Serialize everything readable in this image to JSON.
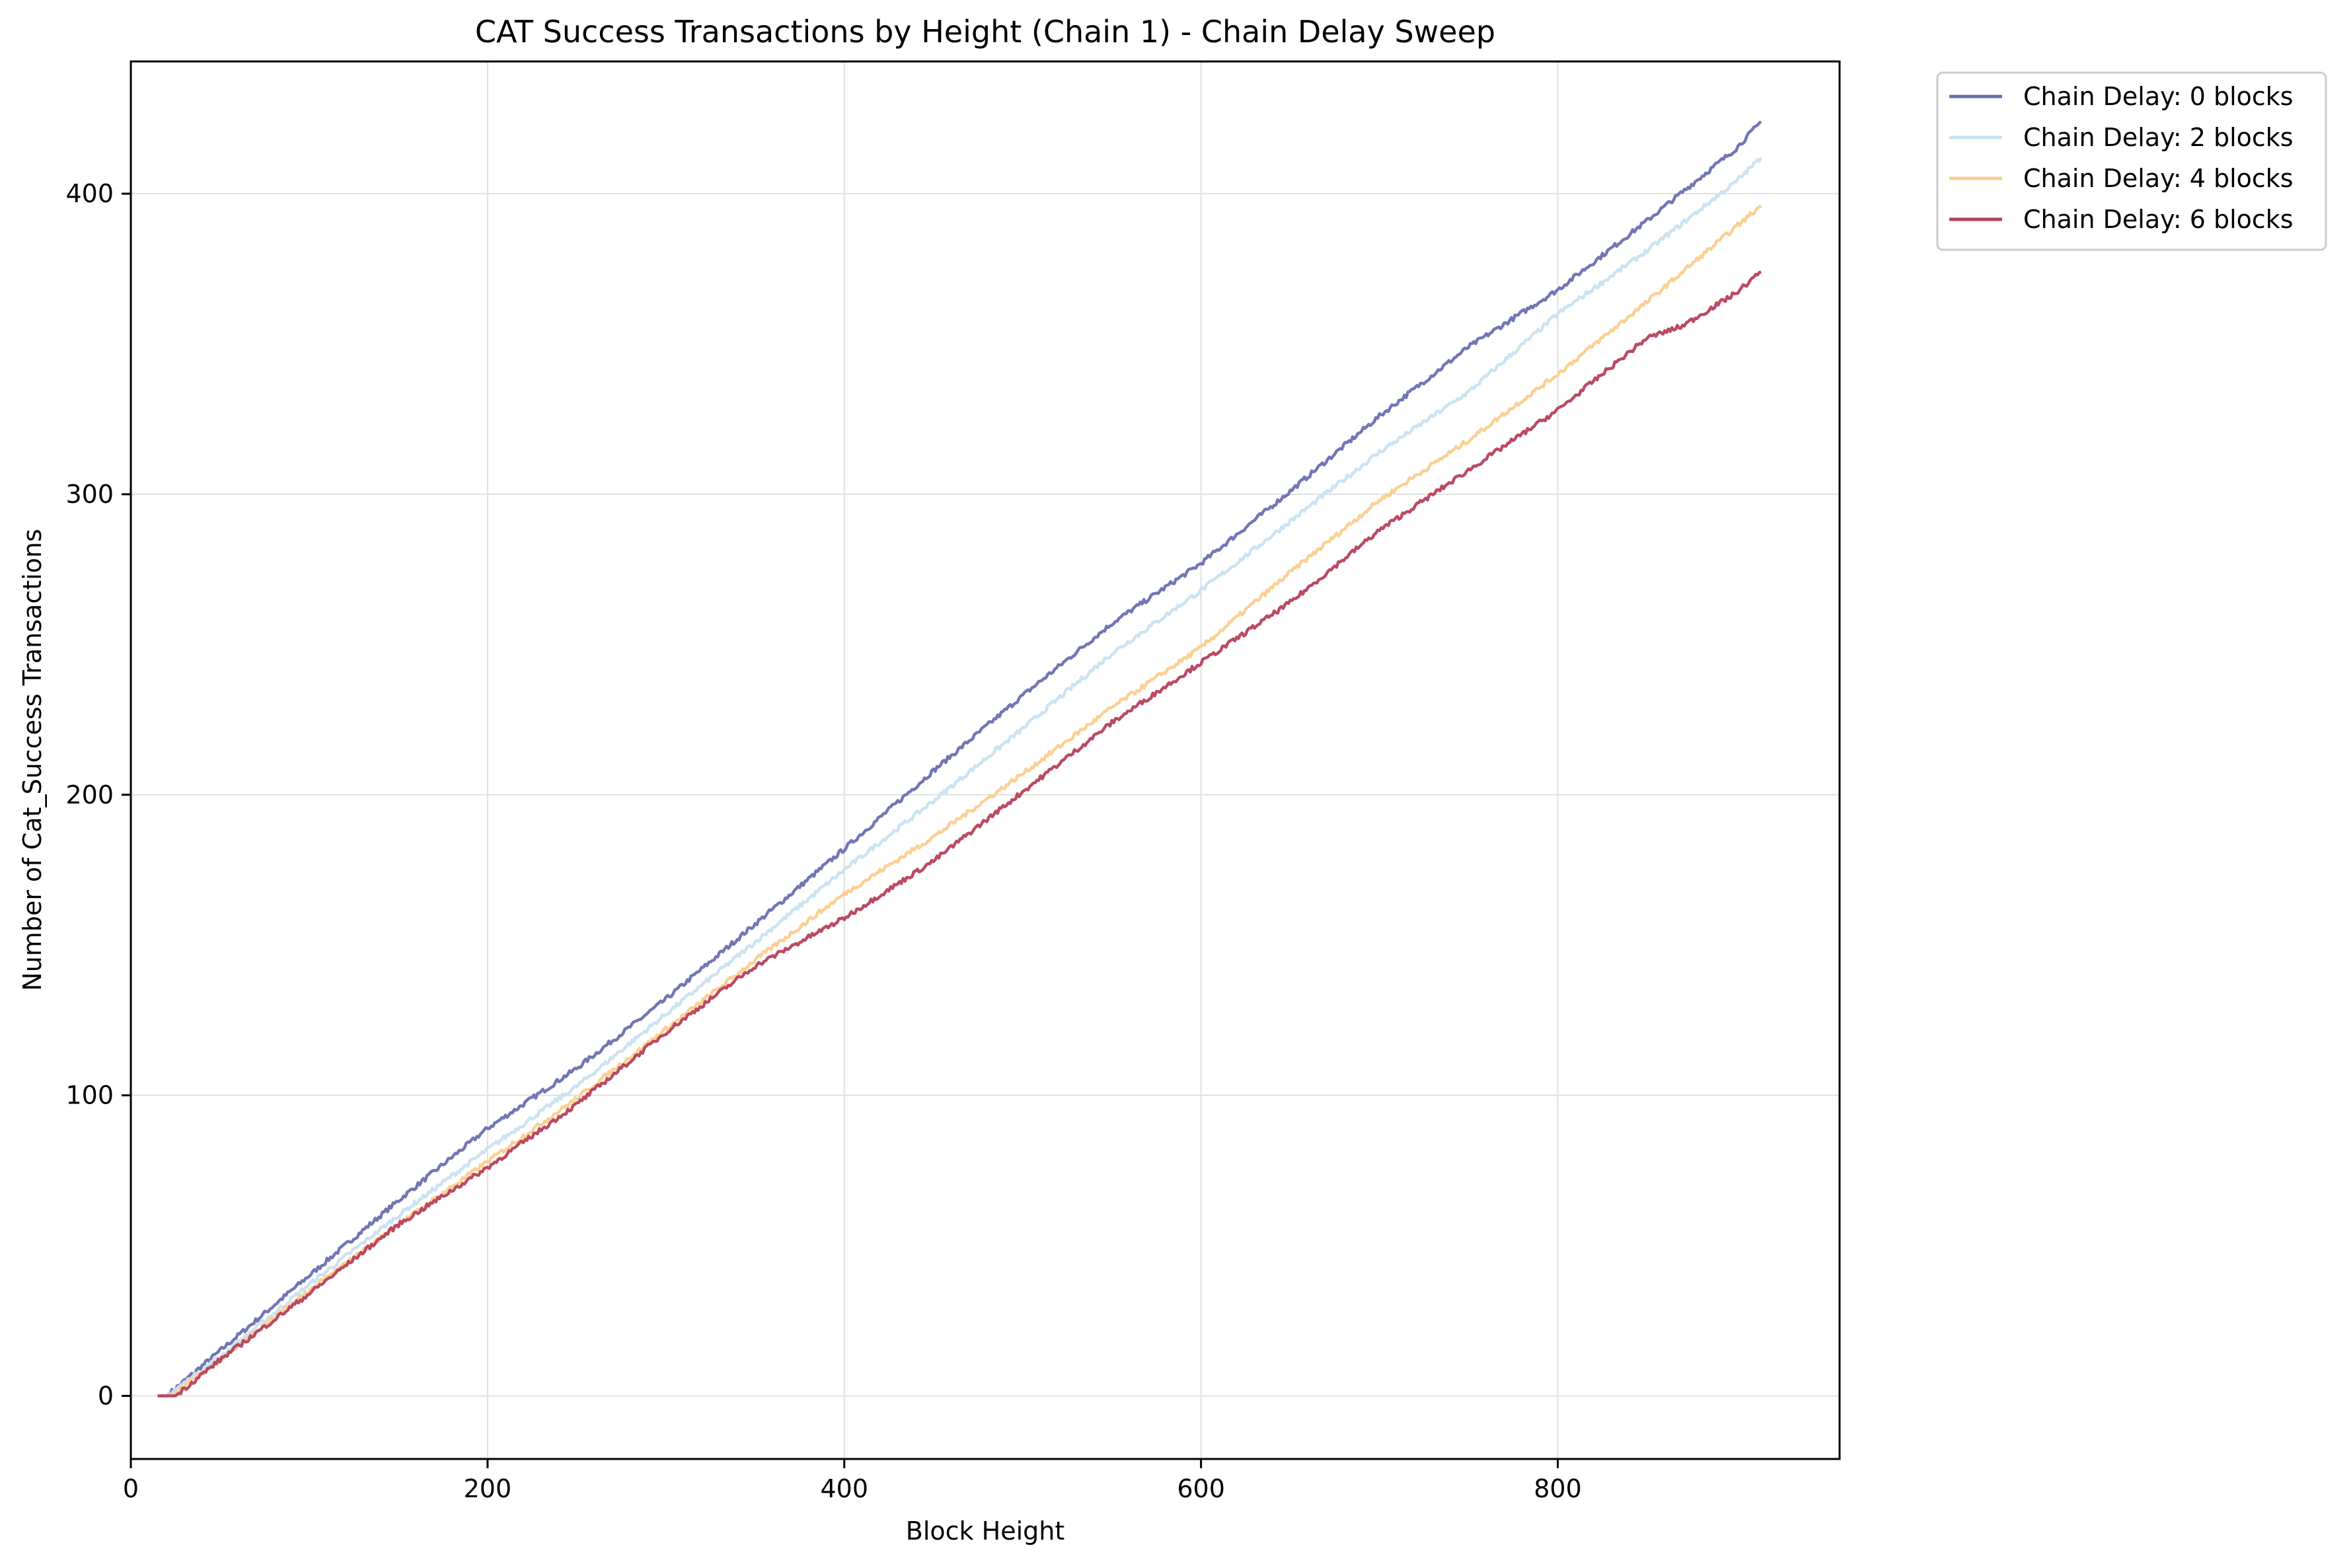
{
  "chart_data": {
    "type": "line",
    "title": "CAT Success Transactions by Height (Chain 1) - Chain Delay Sweep",
    "xlabel": "Block Height",
    "ylabel": "Number of Cat_Success Transactions",
    "xlim": [
      0,
      958
    ],
    "ylim": [
      -21,
      444
    ],
    "xticks": [
      0,
      200,
      400,
      600,
      800
    ],
    "yticks": [
      0,
      100,
      200,
      300,
      400
    ],
    "grid": true,
    "legend_position": "outside-top-right",
    "series": [
      {
        "name": "Chain Delay: 0 blocks",
        "color": "#6a6fb0",
        "x": [
          15,
          20,
          50,
          100,
          150,
          200,
          250,
          300,
          350,
          400,
          450,
          500,
          550,
          600,
          650,
          700,
          750,
          800,
          850,
          900,
          914
        ],
        "y": [
          0,
          0,
          15,
          40,
          65,
          89,
          109,
          132,
          157,
          182,
          208,
          233,
          257,
          277,
          301,
          326,
          349,
          368,
          391,
          415,
          424
        ]
      },
      {
        "name": "Chain Delay: 2 blocks",
        "color": "#c9e2f0",
        "x": [
          15,
          20,
          50,
          100,
          150,
          200,
          250,
          300,
          350,
          400,
          450,
          500,
          550,
          600,
          650,
          700,
          750,
          800,
          850,
          900,
          914
        ],
        "y": [
          0,
          0,
          13,
          37,
          60,
          82,
          103,
          127,
          151,
          175,
          198,
          222,
          247,
          268,
          291,
          314,
          334,
          360,
          381,
          404,
          412
        ]
      },
      {
        "name": "Chain Delay: 4 blocks",
        "color": "#fbce8e",
        "x": [
          15,
          22,
          50,
          100,
          150,
          200,
          250,
          300,
          350,
          400,
          450,
          500,
          550,
          600,
          650,
          700,
          750,
          800,
          850,
          900,
          914
        ],
        "y": [
          0,
          0,
          12,
          35,
          57,
          78,
          99,
          122,
          145,
          167,
          186,
          207,
          229,
          249,
          274,
          298,
          318,
          340,
          364,
          389,
          396
        ]
      },
      {
        "name": "Chain Delay: 6 blocks",
        "color": "#b6405a",
        "x": [
          15,
          25,
          50,
          100,
          150,
          200,
          250,
          300,
          350,
          400,
          450,
          500,
          550,
          600,
          650,
          700,
          750,
          800,
          850,
          870,
          900,
          914
        ],
        "y": [
          0,
          0,
          12,
          34,
          57,
          76,
          97,
          121,
          143,
          159,
          178,
          201,
          224,
          244,
          264,
          288,
          308,
          328,
          352,
          356,
          367,
          374
        ]
      }
    ]
  }
}
